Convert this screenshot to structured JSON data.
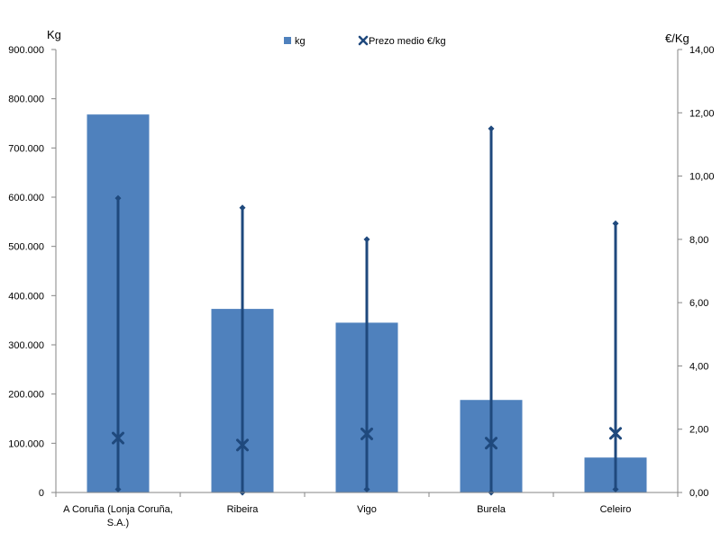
{
  "chart_data": {
    "type": "bar",
    "categories": [
      "A Coruña (Lonja Coruña, S.A.)",
      "Ribeira",
      "Vigo",
      "Burela",
      "Celeiro"
    ],
    "category_lines": [
      [
        "A Coruña (Lonja Coruña,",
        "S.A.)"
      ],
      [
        "Ribeira"
      ],
      [
        "Vigo"
      ],
      [
        "Burela"
      ],
      [
        "Celeiro"
      ]
    ],
    "series": [
      {
        "name": "kg",
        "type": "bar",
        "axis": "left",
        "values": [
          768000,
          373000,
          345000,
          188000,
          71000
        ]
      },
      {
        "name": "Prezo medio €/kg",
        "type": "marker",
        "axis": "right",
        "values": [
          1.72,
          1.5,
          1.85,
          1.56,
          1.87
        ]
      }
    ],
    "price_range": {
      "min": [
        0.1,
        0.0,
        0.1,
        0.0,
        0.1
      ],
      "max": [
        9.3,
        9.0,
        8.0,
        11.5,
        8.5
      ]
    },
    "ylabel_left": "Kg",
    "ylabel_right": "€/Kg",
    "ylim_left": [
      0,
      900000
    ],
    "ylim_right": [
      0,
      14
    ],
    "yticks_left": [
      "0",
      "100.000",
      "200.000",
      "300.000",
      "400.000",
      "500.000",
      "600.000",
      "700.000",
      "800.000",
      "900.000"
    ],
    "yticks_right": [
      "0,00",
      "2,00",
      "4,00",
      "6,00",
      "8,00",
      "10,00",
      "12,00",
      "14,00"
    ],
    "legend": {
      "placement": "top-center",
      "items": [
        "kg",
        "Prezo medio €/kg"
      ]
    },
    "grid": false,
    "colors": {
      "bar": "#4f81bd",
      "marker": "#1f497d",
      "axis": "#868686"
    }
  }
}
